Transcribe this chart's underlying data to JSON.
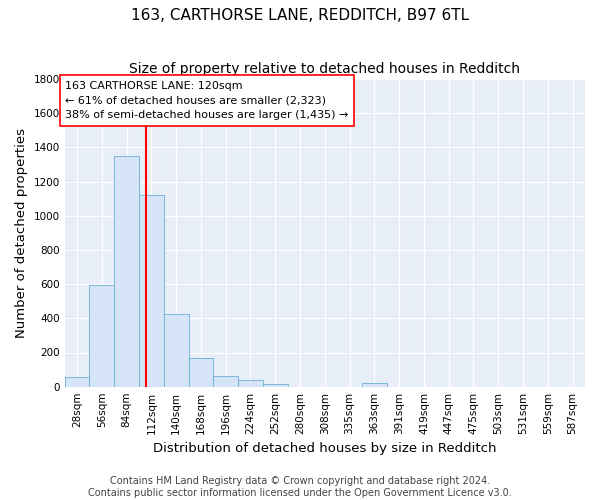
{
  "title": "163, CARTHORSE LANE, REDDITCH, B97 6TL",
  "subtitle": "Size of property relative to detached houses in Redditch",
  "xlabel": "Distribution of detached houses by size in Redditch",
  "ylabel": "Number of detached properties",
  "bin_labels": [
    "28sqm",
    "56sqm",
    "84sqm",
    "112sqm",
    "140sqm",
    "168sqm",
    "196sqm",
    "224sqm",
    "252sqm",
    "280sqm",
    "308sqm",
    "335sqm",
    "363sqm",
    "391sqm",
    "419sqm",
    "447sqm",
    "475sqm",
    "503sqm",
    "531sqm",
    "559sqm",
    "587sqm"
  ],
  "bar_values": [
    55,
    595,
    1350,
    1120,
    425,
    170,
    60,
    38,
    15,
    0,
    0,
    0,
    20,
    0,
    0,
    0,
    0,
    0,
    0,
    0,
    0
  ],
  "bar_color": "#d6e4f7",
  "bar_edge_color": "#6baed6",
  "property_line_x": 4,
  "property_line_color": "red",
  "annotation_text": "163 CARTHORSE LANE: 120sqm\n← 61% of detached houses are smaller (2,323)\n38% of semi-detached houses are larger (1,435) →",
  "annotation_box_color": "white",
  "annotation_box_edge_color": "red",
  "ylim": [
    0,
    1800
  ],
  "yticks": [
    0,
    200,
    400,
    600,
    800,
    1000,
    1200,
    1400,
    1600,
    1800
  ],
  "n_bins": 21,
  "bin_width": 1,
  "footer_line1": "Contains HM Land Registry data © Crown copyright and database right 2024.",
  "footer_line2": "Contains public sector information licensed under the Open Government Licence v3.0.",
  "background_color": "#ffffff",
  "plot_bg_color": "#e8eef8",
  "grid_color": "#ffffff",
  "title_fontsize": 11,
  "subtitle_fontsize": 10,
  "axis_label_fontsize": 9.5,
  "tick_fontsize": 7.5,
  "annotation_fontsize": 8,
  "footer_fontsize": 7
}
